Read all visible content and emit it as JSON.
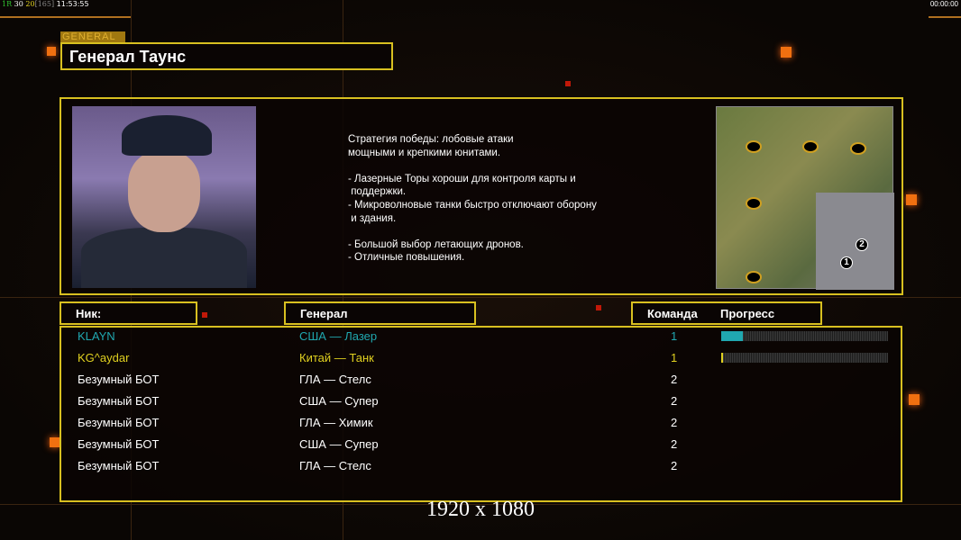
{
  "status": {
    "r": "1R",
    "a": "30",
    "b": "20",
    "c": "[165]",
    "time": "11:53:55",
    "timer": "00:00:00"
  },
  "general": {
    "tag": "GENERAL",
    "name": "Генерал Таунс",
    "description": "Стратегия победы: лобовые атаки\nмощными и крепкими юнитами.\n\n- Лазерные Торы хороши для контроля карты и\n поддержки.\n- Микроволновые танки быстро отключают оборону\n и здания.\n\n- Большой выбор летающих дронов.\n- Отличные повышения."
  },
  "minimap": {
    "markers": [
      "1",
      "2"
    ]
  },
  "headers": {
    "nick": "Ник:",
    "general": "Генерал",
    "team": "Команда",
    "progress": "Прогресс"
  },
  "colors": {
    "accent": "#d8c020",
    "cyan": "#20a8b0",
    "yellow": "#e0d020",
    "white": "#ffffff"
  },
  "players": [
    {
      "nick": "KLAYN",
      "general": "США — Лазер",
      "team": "1",
      "color": "#20a8b0",
      "progress": 13
    },
    {
      "nick": "KG^aydar",
      "general": "Китай — Танк",
      "team": "1",
      "color": "#e0d020",
      "progress": 1
    },
    {
      "nick": "Безумный БОТ",
      "general": "ГЛА — Стелс",
      "team": "2",
      "color": "#ffffff"
    },
    {
      "nick": "Безумный БОТ",
      "general": "США — Супер",
      "team": "2",
      "color": "#ffffff"
    },
    {
      "nick": "Безумный БОТ",
      "general": "ГЛА — Химик",
      "team": "2",
      "color": "#ffffff"
    },
    {
      "nick": "Безумный БОТ",
      "general": "США — Супер",
      "team": "2",
      "color": "#ffffff"
    },
    {
      "nick": "Безумный БОТ",
      "general": "ГЛА — Стелс",
      "team": "2",
      "color": "#ffffff"
    }
  ],
  "resolution": "1920 x 1080"
}
